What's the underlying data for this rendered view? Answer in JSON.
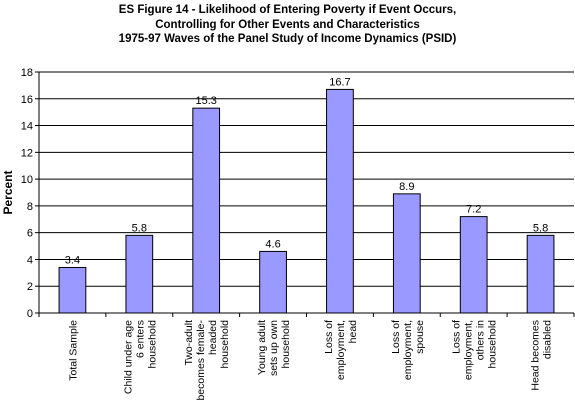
{
  "chart_data": {
    "type": "bar",
    "title_lines": [
      "ES Figure 14 - Likelihood of Entering Poverty if Event Occurs,",
      "Controlling for Other Events and Characteristics",
      "1975-97 Waves of the Panel Study of Income Dynamics (PSID)"
    ],
    "ylabel": "Percent",
    "xlabel": "",
    "ylim": [
      0,
      18
    ],
    "yticks": [
      0,
      2,
      4,
      6,
      8,
      10,
      12,
      14,
      16,
      18
    ],
    "grid": true,
    "categories": [
      [
        "Total Sample"
      ],
      [
        "Child under age",
        "6 enters",
        "household"
      ],
      [
        "Two-adult",
        "becomes female-",
        "headed",
        "household"
      ],
      [
        "Young adult",
        "sets up own",
        "household"
      ],
      [
        "Loss of",
        "employment,",
        "head"
      ],
      [
        "Loss of",
        "employment,",
        "spouse"
      ],
      [
        "Loss of",
        "employment,",
        "others in",
        "household"
      ],
      [
        "Head becomes",
        "disabled"
      ]
    ],
    "values": [
      3.4,
      5.8,
      15.3,
      4.6,
      16.7,
      8.9,
      7.2,
      5.8
    ],
    "data_labels": [
      "3.4",
      "5.8",
      "15.3",
      "4.6",
      "16.7",
      "8.9",
      "7.2",
      "5.8"
    ],
    "bar_color": "#9999ff",
    "bar_edge_color": "#000000"
  }
}
